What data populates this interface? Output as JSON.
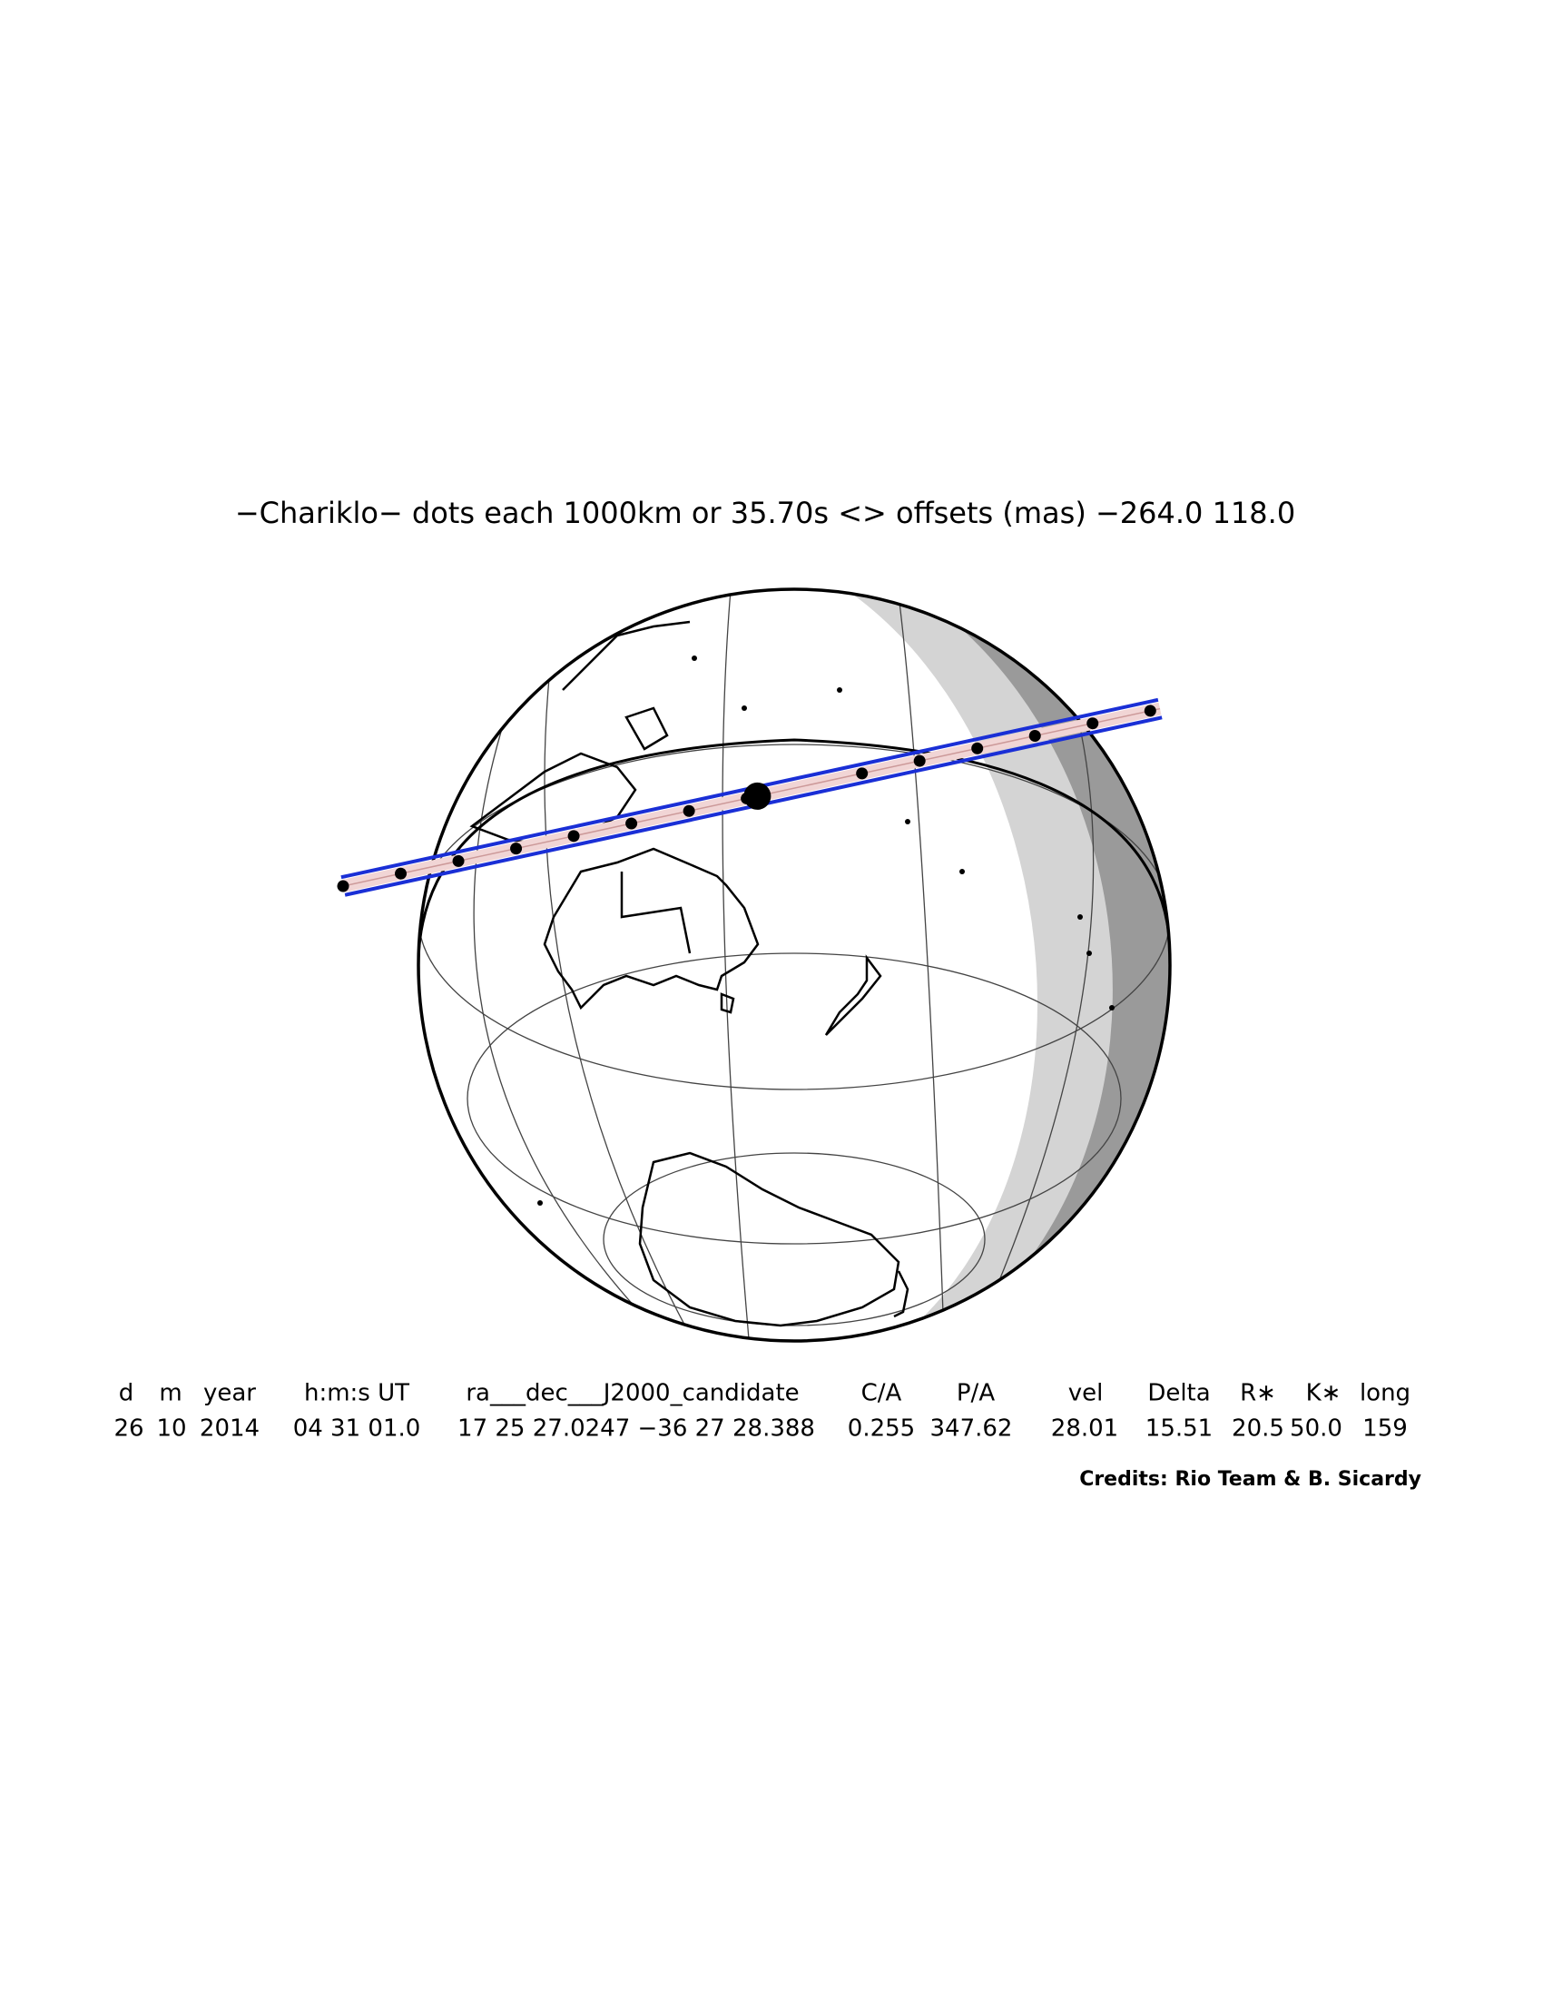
{
  "title": "−Chariklo− dots each 1000km or 35.70s <> offsets (mas) −264.0  118.0",
  "table": {
    "headers": [
      "d",
      "m",
      "year",
      "h:m:s UT",
      "ra___dec___J2000_candidate",
      "C/A",
      "P/A",
      "vel",
      "Delta",
      "R∗",
      "K∗",
      "long"
    ],
    "values": [
      "26",
      "10",
      "2014",
      "04 31 01.0",
      "17 25 27.0247 −36 27 28.388",
      "0.255",
      "347.62",
      "28.01",
      "15.51",
      "20.5",
      "50.0",
      "159"
    ]
  },
  "credits": "Credits: Rio Team & B. Sicardy"
}
